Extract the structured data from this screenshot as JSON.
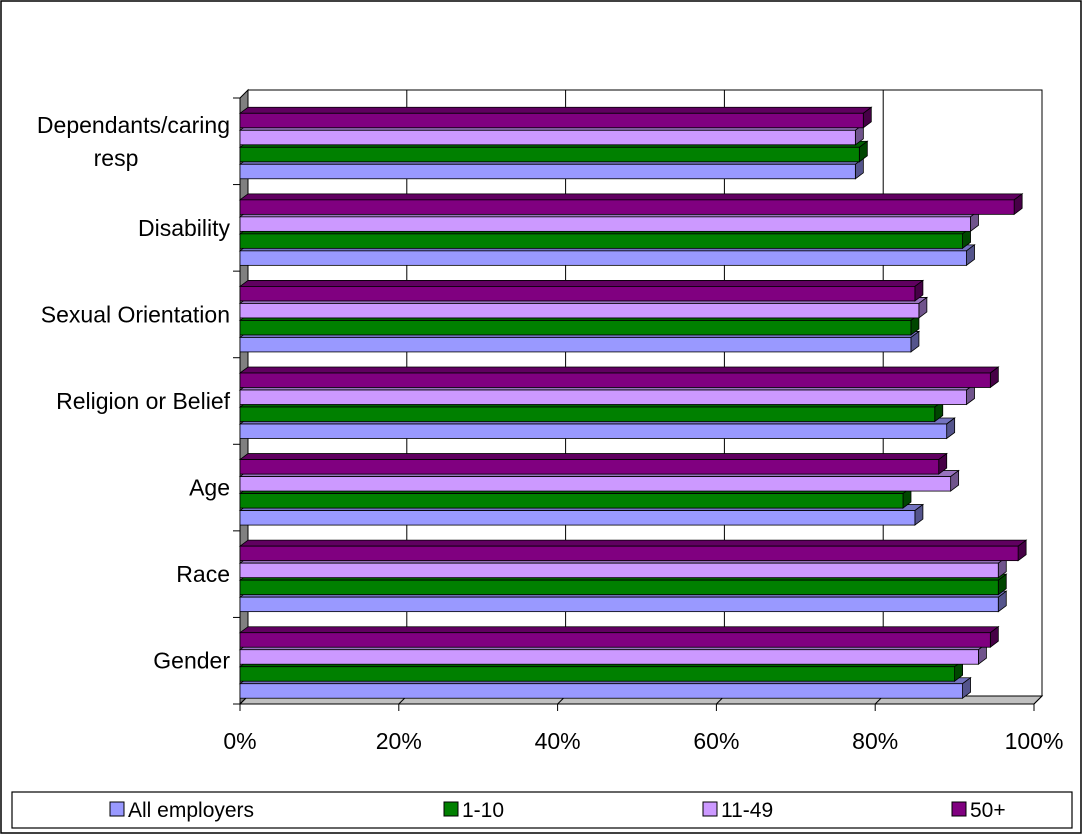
{
  "chart_data": {
    "type": "bar",
    "orientation": "horizontal",
    "three_d": true,
    "categories": [
      "Gender",
      "Race",
      "Age",
      "Religion or Belief",
      "Sexual Orientation",
      "Disability",
      "Dependants/caring resp"
    ],
    "category_lines": [
      [
        "Gender"
      ],
      [
        "Race"
      ],
      [
        "Age"
      ],
      [
        "Religion or Belief"
      ],
      [
        "Sexual Orientation"
      ],
      [
        "Disability"
      ],
      [
        "Dependants/caring",
        "resp"
      ]
    ],
    "series": [
      {
        "name": "All employers",
        "color": "#9999ff",
        "values": [
          91,
          95.5,
          85,
          89,
          84.5,
          91.5,
          77.5
        ]
      },
      {
        "name": "1-10",
        "color": "#008000",
        "values": [
          90,
          95.5,
          83.5,
          87.5,
          84.5,
          91,
          78
        ]
      },
      {
        "name": "11-49",
        "color": "#cc99ff",
        "values": [
          93,
          95.5,
          89.5,
          91.5,
          85.5,
          92,
          77.5
        ]
      },
      {
        "name": "50+",
        "color": "#800080",
        "values": [
          94.5,
          98,
          88,
          94.5,
          85,
          97.5,
          78.5
        ]
      }
    ],
    "xlim": [
      0,
      100
    ],
    "x_ticks": [
      "0%",
      "20%",
      "40%",
      "60%",
      "80%",
      "100%"
    ],
    "grid": true,
    "legend_position": "bottom"
  }
}
